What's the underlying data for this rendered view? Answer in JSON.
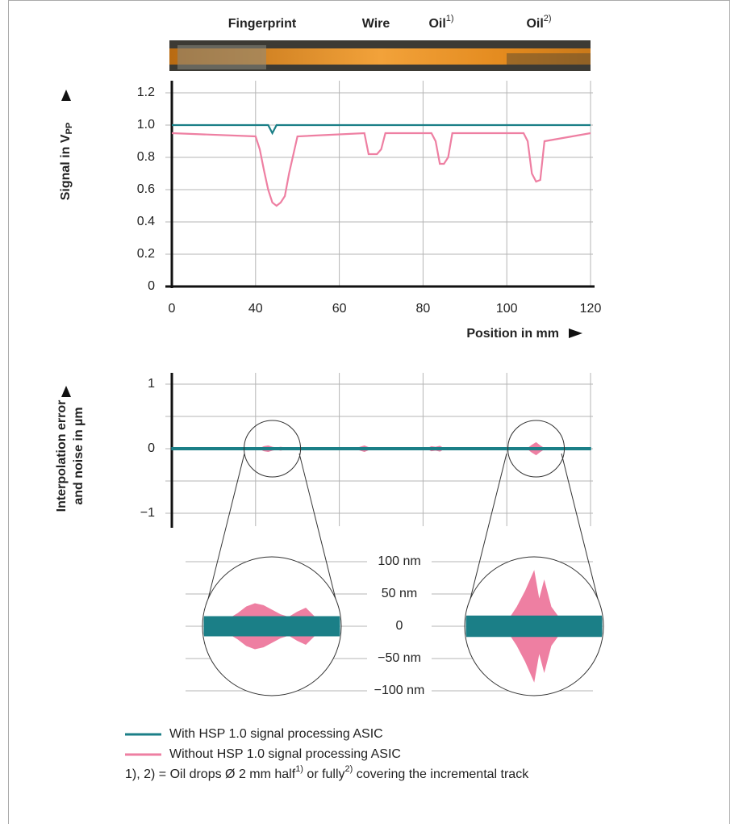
{
  "chart_data": [
    {
      "type": "line",
      "strip_labels": [
        {
          "text": "Fingerprint"
        },
        {
          "text": "Wire"
        },
        {
          "text": "Oil",
          "sup": "1)"
        },
        {
          "text": "Oil",
          "sup": "2)"
        }
      ],
      "y_label": "Signal in V",
      "y_label_sub": "PP",
      "x_label": "Position in mm",
      "xlim": [
        0,
        120
      ],
      "xticks": [
        0,
        40,
        60,
        80,
        100,
        120
      ],
      "ylim": [
        0,
        1.2
      ],
      "yticks": [
        0,
        0.2,
        0.4,
        0.6,
        0.8,
        {
          "value": 1,
          "label": "1.0"
        },
        1.2
      ],
      "grid": true,
      "series": [
        {
          "name": "With HSP 1.0 signal processing ASIC",
          "color": "#1b7f87",
          "x": [
            0,
            43,
            44,
            45,
            120
          ],
          "values": [
            1,
            1,
            0.95,
            1,
            1
          ]
        },
        {
          "name": "Without HSP 1.0 signal processing ASIC",
          "color": "#ee7fa2",
          "x": [
            0,
            40,
            41,
            42,
            43,
            44,
            45,
            46,
            47,
            48,
            50,
            66,
            67,
            69,
            70,
            71,
            82,
            83,
            84,
            85,
            86,
            87,
            104,
            105,
            106,
            107,
            108,
            109,
            120
          ],
          "values": [
            0.95,
            0.93,
            0.85,
            0.72,
            0.6,
            0.52,
            0.5,
            0.52,
            0.56,
            0.7,
            0.93,
            0.95,
            0.82,
            0.82,
            0.85,
            0.95,
            0.95,
            0.9,
            0.76,
            0.76,
            0.8,
            0.95,
            0.95,
            0.9,
            0.7,
            0.65,
            0.66,
            0.9,
            0.95
          ]
        }
      ],
      "note": {
        "prefix": "1), 2) = Oil drops Ø 2 mm half",
        "sup1": "1)",
        "mid": " or fully",
        "sup2": "2)",
        "suffix": " covering the incremental track"
      }
    },
    {
      "type": "band",
      "y_label": [
        "Interpolation error",
        "and noise in µm"
      ],
      "xlim": [
        0,
        120
      ],
      "xgrid": [
        0,
        40,
        60,
        80,
        100,
        120
      ],
      "ylim": [
        -1,
        1
      ],
      "yticks": [
        {
          "value": -1,
          "label": "−1"
        },
        0,
        1
      ],
      "minor_yticks": [
        -0.5,
        0.5
      ],
      "grid": true,
      "series": [
        {
          "color": "#1b7f87",
          "x": [
            0,
            120
          ],
          "values": [
            0.015,
            0.015
          ]
        },
        {
          "color": "#ee7fa2",
          "x": [
            0,
            41,
            42,
            43,
            44,
            45,
            46,
            47,
            48,
            64,
            65,
            66,
            67,
            68,
            81,
            82,
            83,
            84,
            85,
            105,
            106,
            107,
            108,
            109,
            120
          ],
          "values": [
            0,
            0,
            0.03,
            0.04,
            0.02,
            0.01,
            0.02,
            0.01,
            0,
            0,
            0.02,
            0.04,
            0.015,
            0,
            0,
            0.03,
            0.02,
            0.035,
            0,
            0,
            0.05,
            0.09,
            0.04,
            0,
            0
          ]
        }
      ]
    },
    {
      "type": "zoom",
      "ylim": [
        -100,
        100
      ],
      "yticks": [
        {
          "value": 100,
          "label": "100 nm"
        },
        {
          "value": 50,
          "label": "50 nm"
        },
        0,
        {
          "value": -50,
          "label": "−50 nm"
        },
        {
          "value": -100,
          "label": "−100 nm"
        }
      ],
      "insets": [
        {
          "xlim": [
            40,
            48
          ],
          "series": [
            {
              "color": "#1b7f87",
              "x": [
                40,
                48
              ],
              "values": [
                15,
                15
              ]
            },
            {
              "color": "#ee7fa2",
              "x": [
                40,
                41.5,
                42,
                42.5,
                43,
                43.5,
                44,
                44.5,
                45,
                45.5,
                46,
                46.5,
                47,
                48
              ],
              "values": [
                10,
                12,
                20,
                30,
                35,
                32,
                25,
                18,
                14,
                22,
                28,
                15,
                10,
                10
              ]
            }
          ]
        },
        {
          "xlim": [
            103,
            111
          ],
          "series": [
            {
              "color": "#1b7f87",
              "x": [
                103,
                111
              ],
              "values": [
                16,
                16
              ]
            },
            {
              "color": "#ee7fa2",
              "x": [
                103,
                105.5,
                106,
                106.5,
                107,
                107.3,
                107.6,
                108,
                108.5,
                111
              ],
              "values": [
                8,
                10,
                30,
                55,
                85,
                40,
                70,
                30,
                12,
                8
              ]
            }
          ]
        }
      ]
    }
  ]
}
